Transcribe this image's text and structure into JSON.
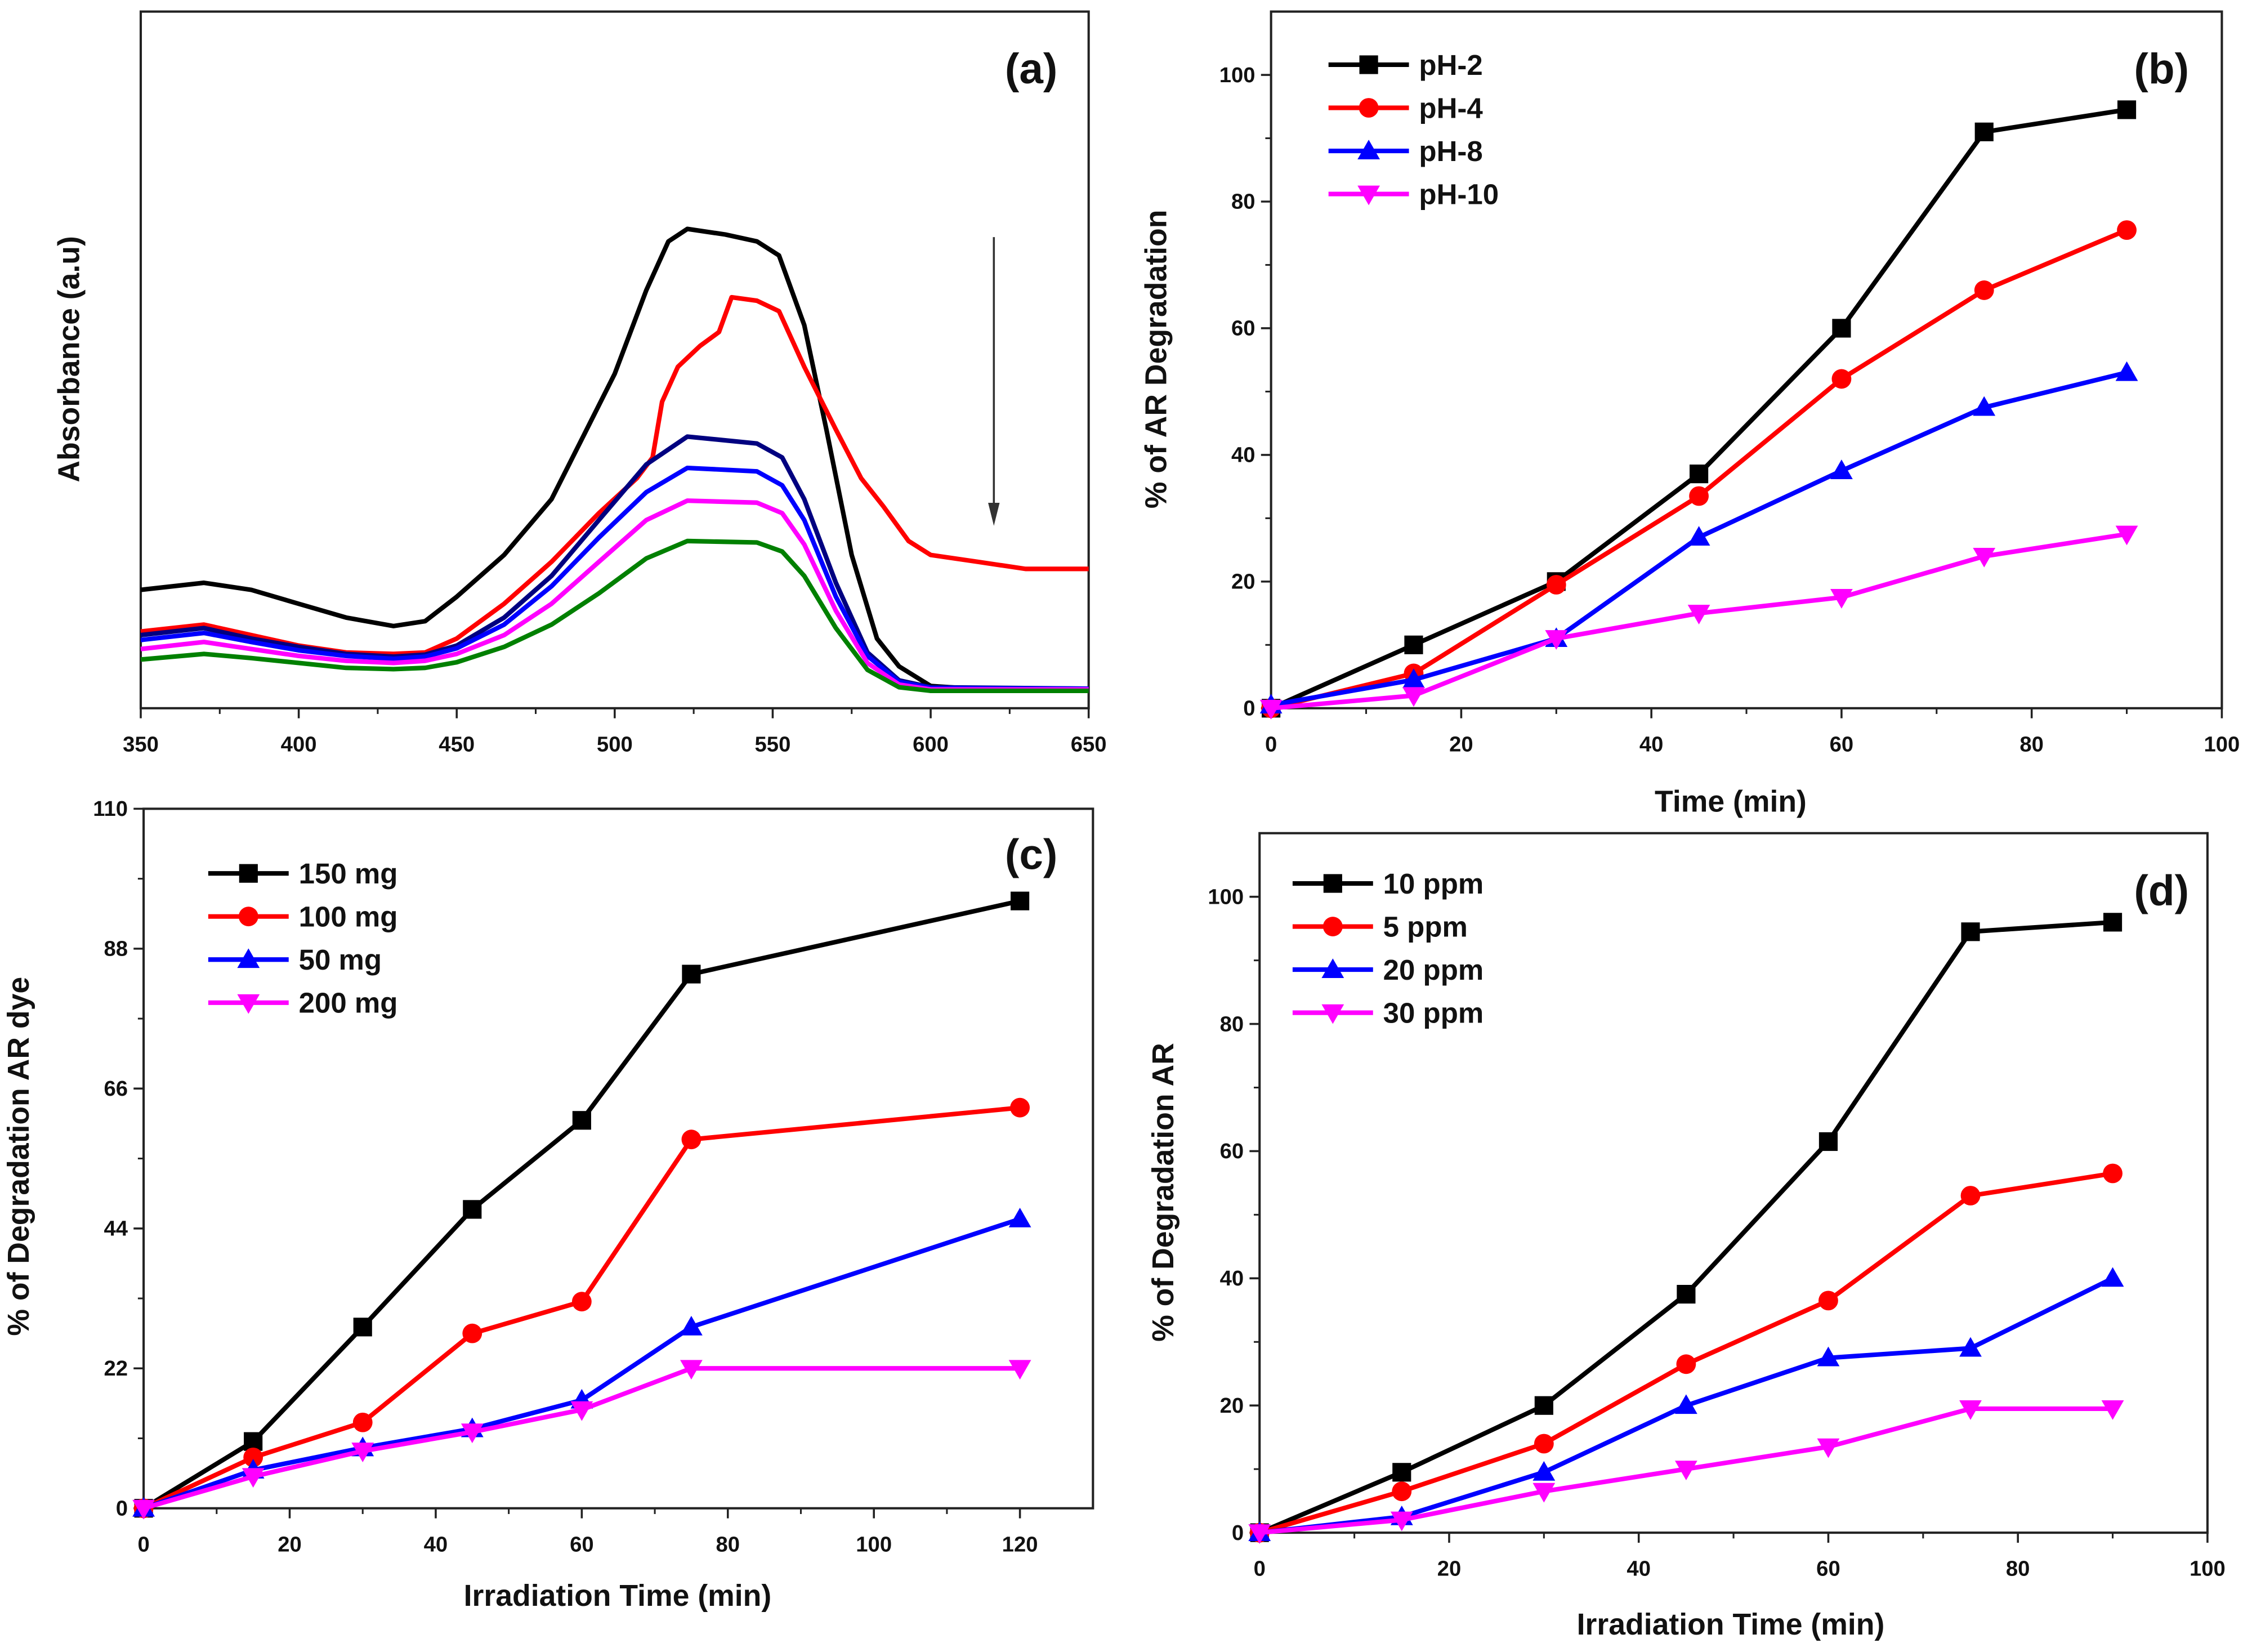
{
  "chart_data": [
    {
      "panel": "(a)",
      "type": "line",
      "xlabel": "",
      "ylabel": "Absorbance (a.u)",
      "xlim": [
        350,
        650
      ],
      "ylim": [
        0,
        1
      ],
      "xticks": [
        350,
        400,
        450,
        500,
        550,
        600,
        650
      ],
      "yticks": [],
      "grid": false,
      "annotation": "downward arrow",
      "series": [
        {
          "color": "#000000",
          "points": [
            [
              350,
              0.17
            ],
            [
              370,
              0.18
            ],
            [
              385,
              0.17
            ],
            [
              400,
              0.15
            ],
            [
              415,
              0.13
            ],
            [
              430,
              0.118
            ],
            [
              440,
              0.125
            ],
            [
              450,
              0.16
            ],
            [
              465,
              0.22
            ],
            [
              480,
              0.3
            ],
            [
              490,
              0.39
            ],
            [
              500,
              0.48
            ],
            [
              510,
              0.6
            ],
            [
              517,
              0.67
            ],
            [
              523,
              0.688
            ],
            [
              535,
              0.68
            ],
            [
              545,
              0.67
            ],
            [
              552,
              0.65
            ],
            [
              560,
              0.55
            ],
            [
              567,
              0.4
            ],
            [
              575,
              0.22
            ],
            [
              583,
              0.1
            ],
            [
              590,
              0.06
            ],
            [
              600,
              0.032
            ],
            [
              620,
              0.026
            ],
            [
              650,
              0.026
            ]
          ]
        },
        {
          "color": "#ff0000",
          "points": [
            [
              350,
              0.11
            ],
            [
              370,
              0.12
            ],
            [
              385,
              0.105
            ],
            [
              400,
              0.09
            ],
            [
              415,
              0.08
            ],
            [
              430,
              0.078
            ],
            [
              440,
              0.08
            ],
            [
              450,
              0.1
            ],
            [
              465,
              0.15
            ],
            [
              480,
              0.21
            ],
            [
              495,
              0.28
            ],
            [
              507,
              0.33
            ],
            [
              512,
              0.36
            ],
            [
              515,
              0.44
            ],
            [
              520,
              0.49
            ],
            [
              527,
              0.52
            ],
            [
              533,
              0.54
            ],
            [
              537,
              0.59
            ],
            [
              545,
              0.585
            ],
            [
              552,
              0.57
            ],
            [
              560,
              0.49
            ],
            [
              570,
              0.4
            ],
            [
              578,
              0.33
            ],
            [
              585,
              0.29
            ],
            [
              593,
              0.24
            ],
            [
              600,
              0.22
            ],
            [
              615,
              0.21
            ],
            [
              630,
              0.2
            ],
            [
              650,
              0.2
            ]
          ]
        },
        {
          "color": "#000080",
          "points": [
            [
              350,
              0.105
            ],
            [
              370,
              0.115
            ],
            [
              385,
              0.1
            ],
            [
              400,
              0.088
            ],
            [
              415,
              0.078
            ],
            [
              430,
              0.074
            ],
            [
              440,
              0.077
            ],
            [
              450,
              0.09
            ],
            [
              465,
              0.13
            ],
            [
              480,
              0.19
            ],
            [
              495,
              0.27
            ],
            [
              510,
              0.35
            ],
            [
              523,
              0.39
            ],
            [
              545,
              0.38
            ],
            [
              553,
              0.36
            ],
            [
              560,
              0.3
            ],
            [
              570,
              0.18
            ],
            [
              580,
              0.08
            ],
            [
              590,
              0.04
            ],
            [
              600,
              0.03
            ],
            [
              650,
              0.028
            ]
          ]
        },
        {
          "color": "#0000ff",
          "points": [
            [
              350,
              0.098
            ],
            [
              370,
              0.108
            ],
            [
              385,
              0.095
            ],
            [
              400,
              0.083
            ],
            [
              415,
              0.075
            ],
            [
              430,
              0.071
            ],
            [
              440,
              0.074
            ],
            [
              450,
              0.086
            ],
            [
              465,
              0.12
            ],
            [
              480,
              0.175
            ],
            [
              495,
              0.245
            ],
            [
              510,
              0.31
            ],
            [
              523,
              0.345
            ],
            [
              545,
              0.34
            ],
            [
              553,
              0.32
            ],
            [
              560,
              0.27
            ],
            [
              570,
              0.16
            ],
            [
              580,
              0.075
            ],
            [
              590,
              0.038
            ],
            [
              600,
              0.029
            ],
            [
              650,
              0.028
            ]
          ]
        },
        {
          "color": "#ff00ff",
          "points": [
            [
              350,
              0.085
            ],
            [
              370,
              0.095
            ],
            [
              385,
              0.085
            ],
            [
              400,
              0.075
            ],
            [
              415,
              0.068
            ],
            [
              430,
              0.065
            ],
            [
              440,
              0.068
            ],
            [
              450,
              0.078
            ],
            [
              465,
              0.105
            ],
            [
              480,
              0.15
            ],
            [
              495,
              0.21
            ],
            [
              510,
              0.27
            ],
            [
              523,
              0.298
            ],
            [
              545,
              0.295
            ],
            [
              553,
              0.28
            ],
            [
              560,
              0.235
            ],
            [
              570,
              0.14
            ],
            [
              580,
              0.065
            ],
            [
              590,
              0.034
            ],
            [
              600,
              0.027
            ],
            [
              650,
              0.027
            ]
          ]
        },
        {
          "color": "#008000",
          "points": [
            [
              350,
              0.07
            ],
            [
              370,
              0.078
            ],
            [
              385,
              0.072
            ],
            [
              400,
              0.065
            ],
            [
              415,
              0.058
            ],
            [
              430,
              0.056
            ],
            [
              440,
              0.058
            ],
            [
              450,
              0.066
            ],
            [
              465,
              0.088
            ],
            [
              480,
              0.12
            ],
            [
              495,
              0.165
            ],
            [
              510,
              0.215
            ],
            [
              523,
              0.24
            ],
            [
              545,
              0.238
            ],
            [
              553,
              0.225
            ],
            [
              560,
              0.19
            ],
            [
              570,
              0.115
            ],
            [
              580,
              0.055
            ],
            [
              590,
              0.03
            ],
            [
              600,
              0.025
            ],
            [
              650,
              0.025
            ]
          ]
        }
      ]
    },
    {
      "panel": "(b)",
      "type": "line",
      "xlabel": "Time (min)",
      "ylabel": "% of AR Degradation",
      "xlim": [
        0,
        100
      ],
      "ylim": [
        0,
        110
      ],
      "xticks": [
        0,
        20,
        40,
        60,
        80,
        100
      ],
      "yticks": [
        0,
        20,
        40,
        60,
        80,
        100
      ],
      "grid": false,
      "legend": "top-left",
      "x": [
        0,
        15,
        30,
        45,
        60,
        75,
        90
      ],
      "series": [
        {
          "name": "pH-2",
          "color": "#000000",
          "marker": "square",
          "values": [
            0,
            10,
            20,
            37,
            60,
            91,
            94.5
          ]
        },
        {
          "name": "pH-4",
          "color": "#ff0000",
          "marker": "circle",
          "values": [
            0,
            5.5,
            19.5,
            33.5,
            52,
            66,
            75.5
          ]
        },
        {
          "name": "pH-8",
          "color": "#0000ff",
          "marker": "triangle-up",
          "values": [
            0.5,
            4.5,
            11,
            27,
            37.5,
            47.5,
            53
          ]
        },
        {
          "name": "pH-10",
          "color": "#ff00ff",
          "marker": "triangle-down",
          "values": [
            0,
            2,
            11,
            15,
            17.5,
            24,
            27.5
          ]
        }
      ]
    },
    {
      "panel": "(c)",
      "type": "line",
      "xlabel": "Irradiation Time (min)",
      "ylabel": "% of Degradation AR dye",
      "xlim": [
        0,
        130
      ],
      "ylim": [
        0,
        110
      ],
      "xticks": [
        0,
        20,
        40,
        60,
        80,
        100,
        120
      ],
      "yticks": [
        0,
        22,
        44,
        66,
        88,
        110
      ],
      "grid": false,
      "legend": "top-left",
      "x": [
        0,
        15,
        30,
        45,
        60,
        75,
        120
      ],
      "series": [
        {
          "name": "150 mg",
          "color": "#000000",
          "marker": "square",
          "values": [
            0,
            10.5,
            28.5,
            47,
            61,
            84,
            95.5
          ]
        },
        {
          "name": "100 mg",
          "color": "#ff0000",
          "marker": "circle",
          "values": [
            0,
            8,
            13.5,
            27.5,
            32.5,
            58,
            63
          ]
        },
        {
          "name": "50 mg",
          "color": "#0000ff",
          "marker": "triangle-up",
          "values": [
            0,
            6,
            9.5,
            12.5,
            17,
            28.5,
            45.5
          ]
        },
        {
          "name": "200 mg",
          "color": "#ff00ff",
          "marker": "triangle-down",
          "values": [
            0,
            5,
            9,
            12,
            15.5,
            22,
            22
          ]
        }
      ]
    },
    {
      "panel": "(d)",
      "type": "line",
      "xlabel": "Irradiation Time (min)",
      "ylabel": "% of Degradation AR",
      "xlim": [
        0,
        100
      ],
      "ylim": [
        0,
        110
      ],
      "xticks": [
        0,
        20,
        40,
        60,
        80,
        100
      ],
      "yticks": [
        0,
        20,
        40,
        60,
        80,
        100
      ],
      "grid": false,
      "legend": "top-left",
      "x": [
        0,
        15,
        30,
        45,
        60,
        75,
        90
      ],
      "series": [
        {
          "name": "10 ppm",
          "color": "#000000",
          "marker": "square",
          "values": [
            0,
            9.5,
            20,
            37.5,
            61.5,
            94.5,
            96
          ]
        },
        {
          "name": "5 ppm",
          "color": "#ff0000",
          "marker": "circle",
          "values": [
            0,
            6.5,
            14,
            26.5,
            36.5,
            53,
            56.5
          ]
        },
        {
          "name": "20 ppm",
          "color": "#0000ff",
          "marker": "triangle-up",
          "values": [
            0,
            2.5,
            9.5,
            20,
            27.5,
            29,
            40
          ]
        },
        {
          "name": "30 ppm",
          "color": "#ff00ff",
          "marker": "triangle-down",
          "values": [
            0,
            2,
            6.5,
            10,
            13.5,
            19.5,
            19.5
          ]
        }
      ]
    }
  ]
}
